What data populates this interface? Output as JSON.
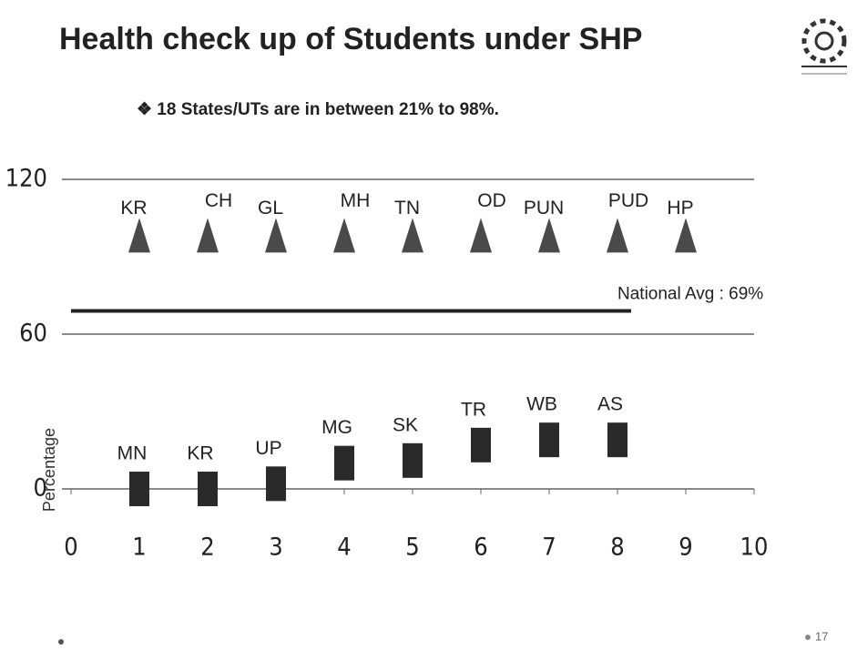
{
  "chart_data": {
    "type": "scatter",
    "title": "Health check up of Students under SHP",
    "subtitle": "❖ 18 States/UTs  are in between 21% to 98%.",
    "y_label": "Percentage",
    "page_number": "17",
    "xlim": [
      0,
      10
    ],
    "xticks": [
      0,
      1,
      2,
      3,
      4,
      5,
      6,
      7,
      8,
      9,
      10
    ],
    "ylim": [
      0,
      120
    ],
    "yticks": [
      0,
      60,
      120
    ],
    "grid": true,
    "national_avg": {
      "value": 69,
      "label": "National Avg : 69%"
    },
    "series": [
      {
        "marker": "triangle",
        "color": "#4a4a4a",
        "x": [
          1,
          2,
          3,
          4,
          5,
          6,
          7,
          8,
          9
        ],
        "values": [
          98,
          98,
          98,
          98,
          98,
          98,
          98,
          98,
          98
        ],
        "labels": [
          "KR",
          "CH",
          "GL",
          "MH",
          "TN",
          "OD",
          "PUN",
          "PUD",
          "HP"
        ]
      },
      {
        "marker": "square",
        "color": "#2a2a2a",
        "x": [
          1,
          2,
          3,
          4,
          5,
          6,
          7,
          8
        ],
        "values": [
          0,
          0,
          2,
          10,
          11,
          17,
          19,
          19
        ],
        "labels": [
          "MN",
          "KR",
          "UP",
          "MG",
          "SK",
          "TR",
          "WB",
          "AS"
        ]
      }
    ]
  }
}
